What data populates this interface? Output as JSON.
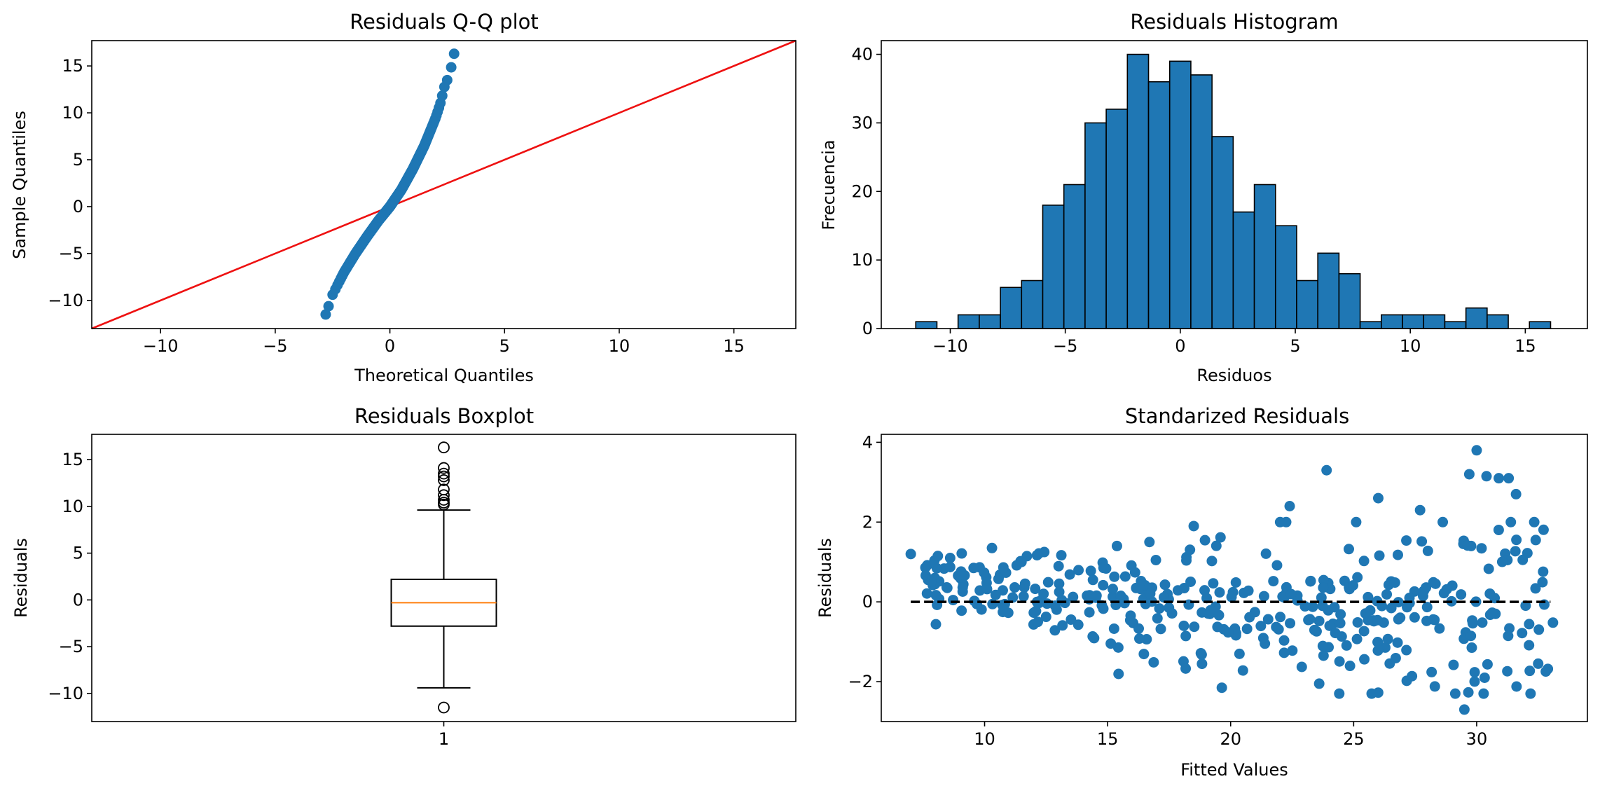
{
  "colors": {
    "marker": "#1f77b4",
    "ref_line": "#ee1111",
    "median": "#ff7f0e",
    "edge": "#000000",
    "background": "#ffffff"
  },
  "chart_data": [
    {
      "type": "scatter",
      "title": "Residuals Q-Q plot",
      "xlabel": "Theoretical Quantiles",
      "ylabel": "Sample Quantiles",
      "xlim": [
        -13,
        17.7
      ],
      "ylim": [
        -13,
        17.7
      ],
      "xticks": [
        -10,
        -5,
        0,
        5,
        10,
        15
      ],
      "yticks": [
        -10,
        -5,
        0,
        5,
        10,
        15
      ],
      "reference_line": [
        [
          -13,
          -13
        ],
        [
          17.7,
          17.7
        ]
      ],
      "sample_quantiles_anchor": {
        "x": [
          -2.8,
          -2.5,
          -2.0,
          -1.5,
          -1.0,
          -0.5,
          0.0,
          0.5,
          1.0,
          1.5,
          2.0,
          2.2,
          2.4,
          2.6,
          2.8
        ],
        "y": [
          -11.5,
          -9.4,
          -7.0,
          -5.0,
          -3.2,
          -1.5,
          0.0,
          1.8,
          4.0,
          6.5,
          9.5,
          11.0,
          13.0,
          14.0,
          16.3
        ]
      },
      "n_points": 400
    },
    {
      "type": "bar",
      "title": "Residuals Histogram",
      "xlabel": "Residuos",
      "ylabel": "Frecuencia",
      "xlim": [
        -13,
        17.7
      ],
      "ylim": [
        0,
        42
      ],
      "xticks": [
        -10,
        -5,
        0,
        5,
        10,
        15
      ],
      "yticks": [
        0,
        10,
        20,
        30,
        40
      ],
      "bin_edges": [
        -11.5,
        -10.58,
        -9.66,
        -8.74,
        -7.82,
        -6.9,
        -5.98,
        -5.06,
        -4.14,
        -3.22,
        -2.3,
        -1.38,
        -0.46,
        0.46,
        1.38,
        2.3,
        3.22,
        4.14,
        5.06,
        5.98,
        6.9,
        7.82,
        8.74,
        9.66,
        10.58,
        11.5,
        12.42,
        13.34,
        14.26,
        15.18,
        16.1
      ],
      "values": [
        1,
        0,
        2,
        2,
        6,
        7,
        18,
        21,
        30,
        32,
        40,
        36,
        39,
        37,
        28,
        17,
        21,
        15,
        7,
        11,
        8,
        1,
        2,
        2,
        2,
        1,
        3,
        2,
        0,
        1
      ]
    },
    {
      "type": "box",
      "title": "Residuals Boxplot",
      "xlabel": "",
      "ylabel": "Residuals",
      "categories": [
        "1"
      ],
      "ylim": [
        -13,
        17.7
      ],
      "yticks": [
        -10,
        -5,
        0,
        5,
        10,
        15
      ],
      "whisker_low": -9.4,
      "q1": -2.8,
      "median": -0.3,
      "q3": 2.2,
      "whisker_high": 9.6,
      "outliers": [
        16.3,
        14.1,
        13.5,
        13.2,
        12.8,
        11.8,
        11.2,
        10.7,
        10.4,
        10.2,
        -11.5
      ]
    },
    {
      "type": "scatter",
      "title": "Standarized Residuals",
      "xlabel": "Fitted Values",
      "ylabel": "Residuals",
      "xlim": [
        5.8,
        34.5
      ],
      "ylim": [
        -3.0,
        4.2
      ],
      "xticks": [
        10,
        15,
        20,
        25,
        30
      ],
      "yticks": [
        -2,
        0,
        2,
        4
      ],
      "zero_line": [
        [
          7,
          0
        ],
        [
          33,
          0
        ]
      ],
      "highlighted_points": [
        [
          7.0,
          1.2
        ],
        [
          8.1,
          1.15
        ],
        [
          8.6,
          1.1
        ],
        [
          10.3,
          1.35
        ],
        [
          11.5,
          1.0
        ],
        [
          16.7,
          1.5
        ],
        [
          18.5,
          1.9
        ],
        [
          22.4,
          2.4
        ],
        [
          23.9,
          3.3
        ],
        [
          26.0,
          2.6
        ],
        [
          27.7,
          2.3
        ],
        [
          29.7,
          3.2
        ],
        [
          30.0,
          3.8
        ],
        [
          30.4,
          3.15
        ],
        [
          30.9,
          3.1
        ],
        [
          31.3,
          3.1
        ],
        [
          31.6,
          2.7
        ],
        [
          32.4,
          1.55
        ],
        [
          33.1,
          -0.52
        ],
        [
          23.6,
          -2.05
        ],
        [
          20.5,
          -1.72
        ],
        [
          28.3,
          -2.12
        ],
        [
          29.5,
          -2.7
        ],
        [
          32.5,
          -1.55
        ]
      ],
      "n_points": 400
    }
  ]
}
